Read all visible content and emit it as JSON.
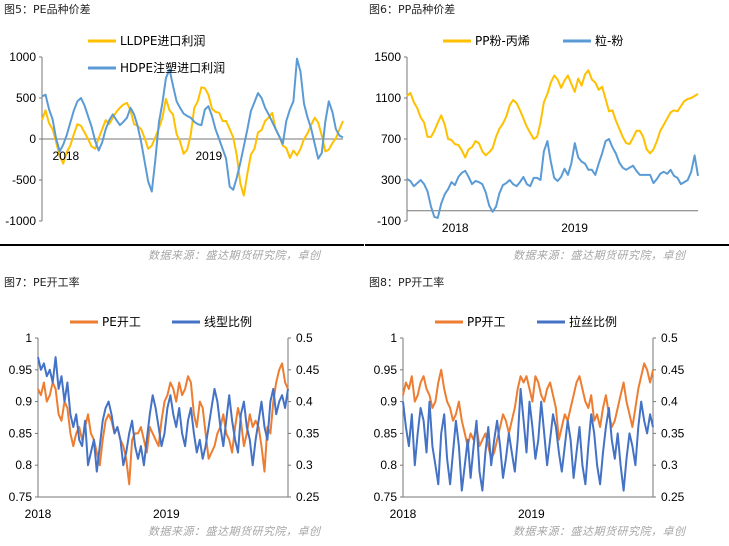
{
  "source_text": "数据来源：盛达期货研究院，卓创",
  "chart_data": [
    {
      "id": "fig5",
      "type": "line",
      "title": "图5：PE品种价差",
      "x_labels": [
        "2018",
        "2019"
      ],
      "ylim": [
        -1000,
        1000
      ],
      "y_ticks": [
        -1000,
        -500,
        0,
        500,
        1000
      ],
      "y_tick_labels": [
        "-1000",
        "-500",
        "0",
        "500",
        "1000"
      ],
      "legend_position": "top",
      "series": [
        {
          "name": "LLDPE进口利润",
          "color": "#ffc000",
          "axis": "left",
          "values": [
            230,
            350,
            190,
            120,
            -40,
            -210,
            -300,
            -160,
            -80,
            60,
            180,
            160,
            80,
            0,
            -90,
            -120,
            10,
            120,
            230,
            180,
            260,
            330,
            380,
            420,
            440,
            350,
            180,
            160,
            120,
            10,
            -120,
            -80,
            20,
            130,
            260,
            490,
            350,
            300,
            60,
            -30,
            -180,
            -130,
            50,
            380,
            460,
            630,
            620,
            540,
            370,
            330,
            320,
            220,
            220,
            120,
            20,
            -200,
            -540,
            -690,
            -420,
            -190,
            -120,
            80,
            110,
            220,
            260,
            320,
            120,
            30,
            -80,
            -110,
            -230,
            -140,
            -200,
            -120,
            0,
            70,
            170,
            260,
            200,
            40,
            -150,
            -130,
            -50,
            10,
            120,
            220
          ]
        },
        {
          "name": "HDPE注塑进口利润",
          "color": "#5b9bd5",
          "axis": "left",
          "values": [
            520,
            540,
            360,
            240,
            0,
            -150,
            -70,
            50,
            200,
            350,
            460,
            500,
            410,
            280,
            150,
            -20,
            -140,
            -40,
            120,
            230,
            300,
            230,
            170,
            210,
            260,
            380,
            300,
            160,
            -40,
            -280,
            -520,
            -640,
            -260,
            200,
            440,
            740,
            850,
            650,
            460,
            380,
            310,
            280,
            260,
            210,
            180,
            170,
            360,
            400,
            280,
            120,
            0,
            -120,
            -240,
            -580,
            -620,
            -470,
            -290,
            -90,
            120,
            340,
            450,
            560,
            500,
            380,
            300,
            210,
            120,
            30,
            -60,
            220,
            360,
            460,
            980,
            820,
            430,
            260,
            130,
            -60,
            -240,
            -170,
            210,
            460,
            330,
            120,
            40,
            20
          ]
        }
      ]
    },
    {
      "id": "fig6",
      "type": "line",
      "title": "图6：PP品种价差",
      "x_labels": [
        "2018",
        "2019"
      ],
      "ylim": [
        -100,
        1500
      ],
      "y_ticks": [
        -100,
        300,
        700,
        1100,
        1500
      ],
      "y_tick_labels": [
        "-100",
        "300",
        "700",
        "1100",
        "1500"
      ],
      "legend_position": "top",
      "series": [
        {
          "name": "PP粉-丙烯",
          "color": "#ffc000",
          "axis": "left",
          "values": [
            1120,
            1150,
            1060,
            1000,
            910,
            860,
            720,
            720,
            780,
            860,
            930,
            840,
            700,
            690,
            650,
            640,
            590,
            520,
            600,
            620,
            680,
            660,
            580,
            540,
            570,
            610,
            720,
            800,
            850,
            920,
            1030,
            1080,
            1050,
            980,
            900,
            820,
            760,
            700,
            720,
            860,
            1060,
            1140,
            1250,
            1320,
            1280,
            1200,
            1270,
            1320,
            1240,
            1160,
            1290,
            1220,
            1330,
            1370,
            1280,
            1250,
            1180,
            1210,
            1090,
            970,
            980,
            880,
            800,
            720,
            660,
            650,
            710,
            780,
            780,
            720,
            600,
            560,
            600,
            680,
            780,
            840,
            900,
            960,
            980,
            970,
            1020,
            1070,
            1090,
            1100,
            1120,
            1140
          ]
        },
        {
          "name": "粒-粉",
          "color": "#5b9bd5",
          "axis": "left",
          "values": [
            310,
            290,
            240,
            270,
            300,
            260,
            190,
            40,
            -60,
            -70,
            70,
            160,
            210,
            280,
            250,
            330,
            370,
            390,
            330,
            260,
            290,
            280,
            260,
            180,
            50,
            -10,
            40,
            170,
            250,
            270,
            300,
            260,
            240,
            280,
            330,
            260,
            240,
            320,
            320,
            300,
            580,
            680,
            480,
            320,
            290,
            330,
            410,
            350,
            460,
            660,
            520,
            480,
            460,
            400,
            400,
            350,
            460,
            560,
            680,
            700,
            620,
            560,
            470,
            420,
            400,
            420,
            440,
            390,
            350,
            350,
            350,
            350,
            270,
            310,
            360,
            380,
            360,
            400,
            340,
            320,
            260,
            280,
            300,
            380,
            540,
            340
          ]
        }
      ]
    },
    {
      "id": "fig7",
      "type": "line",
      "title": "图7：PE开工率",
      "x_labels": [
        "2018",
        "2019"
      ],
      "ylim": [
        0.75,
        1
      ],
      "y_ticks": [
        0.75,
        0.8,
        0.85,
        0.9,
        0.95,
        1
      ],
      "y_tick_labels": [
        "0.75",
        "0.8",
        "0.85",
        "0.9",
        "0.95",
        "1"
      ],
      "y2lim": [
        0.25,
        0.5
      ],
      "y2_ticks": [
        0.25,
        0.3,
        0.35,
        0.4,
        0.45,
        0.5
      ],
      "y2_tick_labels": [
        "0.25",
        "0.3",
        "0.35",
        "0.4",
        "0.45",
        "0.5"
      ],
      "legend_position": "top",
      "series": [
        {
          "name": "PE开工",
          "color": "#ed7d31",
          "axis": "left",
          "values": [
            0.92,
            0.91,
            0.93,
            0.9,
            0.91,
            0.93,
            0.92,
            0.88,
            0.87,
            0.9,
            0.89,
            0.85,
            0.83,
            0.85,
            0.86,
            0.84,
            0.86,
            0.88,
            0.85,
            0.84,
            0.82,
            0.8,
            0.84,
            0.87,
            0.88,
            0.87,
            0.85,
            0.86,
            0.84,
            0.83,
            0.81,
            0.77,
            0.84,
            0.85,
            0.85,
            0.86,
            0.84,
            0.82,
            0.86,
            0.85,
            0.84,
            0.83,
            0.87,
            0.9,
            0.91,
            0.93,
            0.92,
            0.9,
            0.93,
            0.91,
            0.92,
            0.94,
            0.93,
            0.88,
            0.86,
            0.9,
            0.89,
            0.85,
            0.81,
            0.82,
            0.83,
            0.85,
            0.86,
            0.88,
            0.85,
            0.84,
            0.82,
            0.86,
            0.89,
            0.87,
            0.83,
            0.85,
            0.88,
            0.86,
            0.87,
            0.86,
            0.83,
            0.79,
            0.86,
            0.85,
            0.9,
            0.93,
            0.95,
            0.96,
            0.93,
            0.92
          ]
        },
        {
          "name": "线型比例",
          "color": "#4472c4",
          "axis": "right",
          "values": [
            0.47,
            0.45,
            0.46,
            0.44,
            0.45,
            0.43,
            0.47,
            0.42,
            0.44,
            0.4,
            0.43,
            0.38,
            0.36,
            0.38,
            0.34,
            0.33,
            0.37,
            0.3,
            0.32,
            0.34,
            0.29,
            0.33,
            0.37,
            0.39,
            0.4,
            0.38,
            0.35,
            0.36,
            0.34,
            0.3,
            0.32,
            0.35,
            0.37,
            0.33,
            0.31,
            0.33,
            0.3,
            0.34,
            0.38,
            0.41,
            0.39,
            0.36,
            0.33,
            0.35,
            0.39,
            0.41,
            0.38,
            0.36,
            0.39,
            0.35,
            0.33,
            0.37,
            0.39,
            0.35,
            0.32,
            0.34,
            0.31,
            0.33,
            0.36,
            0.39,
            0.42,
            0.4,
            0.36,
            0.33,
            0.37,
            0.41,
            0.37,
            0.34,
            0.32,
            0.38,
            0.4,
            0.36,
            0.34,
            0.3,
            0.34,
            0.37,
            0.4,
            0.36,
            0.34,
            0.4,
            0.42,
            0.38,
            0.4,
            0.41,
            0.39,
            0.42
          ]
        }
      ]
    },
    {
      "id": "fig8",
      "type": "line",
      "title": "图8：PP开工率",
      "x_labels": [
        "2018",
        "2019"
      ],
      "ylim": [
        0.75,
        1
      ],
      "y_ticks": [
        0.75,
        0.8,
        0.85,
        0.9,
        0.95,
        1
      ],
      "y_tick_labels": [
        "0.75",
        "0.8",
        "0.85",
        "0.9",
        "0.95",
        "1"
      ],
      "y2lim": [
        0.25,
        0.5
      ],
      "y2_ticks": [
        0.25,
        0.3,
        0.35,
        0.4,
        0.45,
        0.5
      ],
      "y2_tick_labels": [
        "0.25",
        "0.3",
        "0.35",
        "0.4",
        "0.45",
        "0.5"
      ],
      "legend_position": "top",
      "series": [
        {
          "name": "PP开工",
          "color": "#ed7d31",
          "axis": "left",
          "values": [
            0.91,
            0.93,
            0.92,
            0.94,
            0.9,
            0.91,
            0.93,
            0.94,
            0.92,
            0.91,
            0.89,
            0.9,
            0.93,
            0.95,
            0.92,
            0.9,
            0.89,
            0.87,
            0.88,
            0.9,
            0.87,
            0.85,
            0.83,
            0.85,
            0.84,
            0.86,
            0.83,
            0.84,
            0.85,
            0.83,
            0.81,
            0.82,
            0.84,
            0.86,
            0.88,
            0.87,
            0.85,
            0.87,
            0.89,
            0.92,
            0.94,
            0.93,
            0.94,
            0.92,
            0.9,
            0.94,
            0.93,
            0.91,
            0.9,
            0.92,
            0.93,
            0.91,
            0.89,
            0.84,
            0.86,
            0.88,
            0.87,
            0.89,
            0.91,
            0.93,
            0.94,
            0.92,
            0.9,
            0.89,
            0.91,
            0.87,
            0.88,
            0.86,
            0.89,
            0.91,
            0.88,
            0.86,
            0.87,
            0.89,
            0.91,
            0.93,
            0.9,
            0.88,
            0.86,
            0.89,
            0.92,
            0.94,
            0.96,
            0.95,
            0.93,
            0.95
          ]
        },
        {
          "name": "拉丝比例",
          "color": "#4472c4",
          "axis": "right",
          "values": [
            0.4,
            0.36,
            0.33,
            0.38,
            0.3,
            0.35,
            0.39,
            0.37,
            0.32,
            0.4,
            0.33,
            0.3,
            0.27,
            0.35,
            0.38,
            0.31,
            0.27,
            0.32,
            0.37,
            0.33,
            0.26,
            0.3,
            0.34,
            0.28,
            0.33,
            0.37,
            0.29,
            0.26,
            0.32,
            0.36,
            0.3,
            0.34,
            0.37,
            0.33,
            0.28,
            0.31,
            0.35,
            0.32,
            0.29,
            0.34,
            0.42,
            0.37,
            0.32,
            0.4,
            0.36,
            0.31,
            0.34,
            0.4,
            0.35,
            0.3,
            0.34,
            0.38,
            0.36,
            0.32,
            0.29,
            0.33,
            0.37,
            0.34,
            0.28,
            0.32,
            0.36,
            0.3,
            0.27,
            0.33,
            0.38,
            0.35,
            0.3,
            0.27,
            0.32,
            0.36,
            0.39,
            0.34,
            0.31,
            0.35,
            0.3,
            0.26,
            0.31,
            0.35,
            0.33,
            0.3,
            0.36,
            0.4,
            0.37,
            0.35,
            0.38,
            0.36
          ]
        }
      ]
    }
  ]
}
